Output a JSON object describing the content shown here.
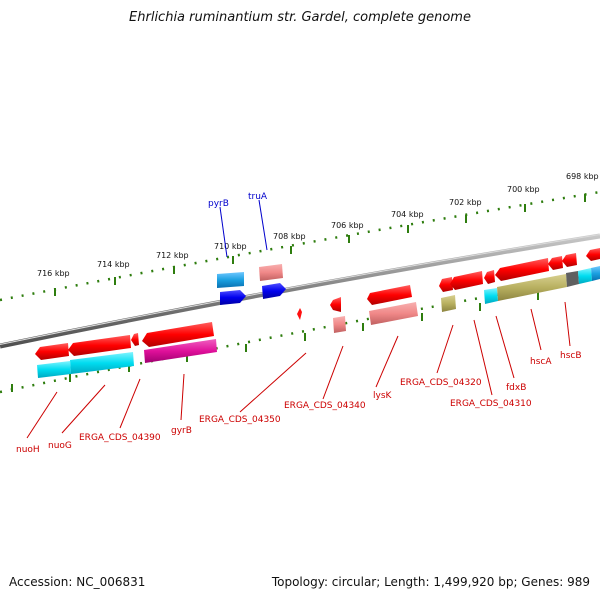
{
  "header": {
    "title": "Ehrlichia ruminantium str. Gardel, complete genome"
  },
  "footer": {
    "accession": "Accession: NC_006831",
    "topology": "Topology: circular; Length: 1,499,920 bp; Genes: 989"
  },
  "ruler": {
    "ticks": [
      "716 kbp",
      "714 kbp",
      "712 kbp",
      "710 kbp",
      "708 kbp",
      "706 kbp",
      "704 kbp",
      "702 kbp",
      "700 kbp",
      "698 kbp"
    ]
  },
  "genes_top": [
    {
      "name": "pyrB",
      "color": "#0000cc"
    },
    {
      "name": "truA",
      "color": "#0000cc"
    }
  ],
  "genes_bottom": [
    {
      "name": "nuoH",
      "color": "#cc0000"
    },
    {
      "name": "nuoG",
      "color": "#cc0000"
    },
    {
      "name": "ERGA_CDS_04390",
      "color": "#cc0000"
    },
    {
      "name": "gyrB",
      "color": "#cc0000"
    },
    {
      "name": "ERGA_CDS_04350",
      "color": "#cc0000"
    },
    {
      "name": "ERGA_CDS_04340",
      "color": "#cc0000"
    },
    {
      "name": "lysK",
      "color": "#cc0000"
    },
    {
      "name": "ERGA_CDS_04320",
      "color": "#cc0000"
    },
    {
      "name": "ERGA_CDS_04310",
      "color": "#cc0000"
    },
    {
      "name": "fdxB",
      "color": "#cc0000"
    },
    {
      "name": "hscA",
      "color": "#cc0000"
    },
    {
      "name": "hscB",
      "color": "#cc0000"
    }
  ],
  "colors": {
    "backbone": "#808080",
    "ticks": "#2e7d0e",
    "forward_cds": "#ff1a1a",
    "reverse_cds": "#0000ee",
    "cog_cyan": "#00d8ee",
    "cog_magenta": "#e0109a",
    "cog_salmon": "#f08a8a",
    "cog_olive": "#b8b060",
    "cog_lightblue": "#1aa0e0"
  }
}
